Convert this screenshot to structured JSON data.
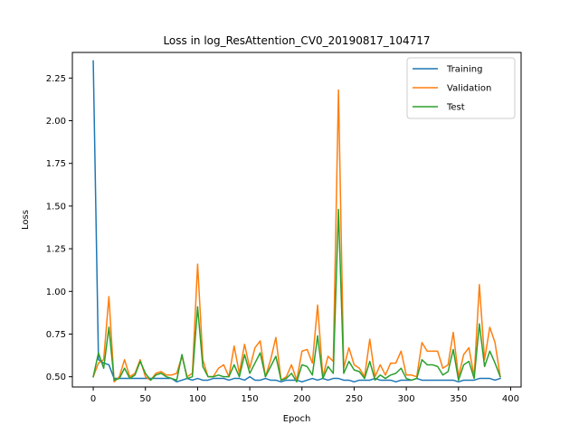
{
  "chart_data": {
    "type": "line",
    "title": "Loss in log_ResAttention_CV0_20190817_104717",
    "xlabel": "Epoch",
    "ylabel": "Loss",
    "xlim": [
      -20,
      410
    ],
    "ylim": [
      0.44,
      2.4
    ],
    "xticks": [
      0,
      50,
      100,
      150,
      200,
      250,
      300,
      350,
      400
    ],
    "yticks": [
      0.5,
      0.75,
      1.0,
      1.25,
      1.5,
      1.75,
      2.0,
      2.25
    ],
    "ytick_format": 2,
    "grid": false,
    "legend_position": "top-right",
    "x": [
      0,
      5,
      10,
      15,
      20,
      25,
      30,
      35,
      40,
      45,
      50,
      55,
      60,
      65,
      70,
      75,
      80,
      85,
      90,
      95,
      100,
      105,
      110,
      115,
      120,
      125,
      130,
      135,
      140,
      145,
      150,
      155,
      160,
      165,
      170,
      175,
      180,
      185,
      190,
      195,
      200,
      205,
      210,
      215,
      220,
      225,
      230,
      235,
      240,
      245,
      250,
      255,
      260,
      265,
      270,
      275,
      280,
      285,
      290,
      295,
      300,
      305,
      310,
      315,
      320,
      325,
      330,
      335,
      340,
      345,
      350,
      355,
      360,
      365,
      370,
      375,
      380,
      385,
      390
    ],
    "series": [
      {
        "name": "Training",
        "color": "#1f77b4",
        "values": [
          2.35,
          0.6,
          0.58,
          0.57,
          0.49,
          0.49,
          0.49,
          0.49,
          0.49,
          0.49,
          0.49,
          0.49,
          0.49,
          0.49,
          0.49,
          0.49,
          0.47,
          0.48,
          0.49,
          0.48,
          0.49,
          0.48,
          0.48,
          0.49,
          0.49,
          0.49,
          0.48,
          0.49,
          0.49,
          0.48,
          0.5,
          0.48,
          0.48,
          0.49,
          0.48,
          0.48,
          0.47,
          0.48,
          0.48,
          0.48,
          0.47,
          0.48,
          0.49,
          0.48,
          0.49,
          0.48,
          0.49,
          0.49,
          0.48,
          0.48,
          0.47,
          0.48,
          0.48,
          0.48,
          0.49,
          0.48,
          0.48,
          0.48,
          0.47,
          0.48,
          0.48,
          0.48,
          0.49,
          0.48,
          0.48,
          0.48,
          0.48,
          0.48,
          0.48,
          0.48,
          0.47,
          0.48,
          0.48,
          0.48,
          0.49,
          0.49,
          0.49,
          0.48,
          0.49
        ]
      },
      {
        "name": "Validation",
        "color": "#ff7f0e",
        "values": [
          0.5,
          0.58,
          0.6,
          0.97,
          0.47,
          0.5,
          0.6,
          0.5,
          0.52,
          0.6,
          0.5,
          0.48,
          0.52,
          0.53,
          0.51,
          0.51,
          0.52,
          0.62,
          0.5,
          0.52,
          1.16,
          0.6,
          0.5,
          0.5,
          0.55,
          0.57,
          0.5,
          0.68,
          0.52,
          0.69,
          0.55,
          0.67,
          0.71,
          0.5,
          0.6,
          0.73,
          0.48,
          0.5,
          0.57,
          0.48,
          0.65,
          0.66,
          0.58,
          0.92,
          0.5,
          0.62,
          0.59,
          2.18,
          0.55,
          0.67,
          0.57,
          0.55,
          0.5,
          0.72,
          0.5,
          0.57,
          0.51,
          0.58,
          0.58,
          0.65,
          0.51,
          0.51,
          0.5,
          0.7,
          0.65,
          0.65,
          0.65,
          0.55,
          0.57,
          0.76,
          0.5,
          0.63,
          0.67,
          0.5,
          1.04,
          0.6,
          0.79,
          0.7,
          0.5
        ]
      },
      {
        "name": "Test",
        "color": "#2ca02c",
        "values": [
          0.5,
          0.64,
          0.55,
          0.79,
          0.48,
          0.49,
          0.55,
          0.49,
          0.51,
          0.59,
          0.52,
          0.48,
          0.51,
          0.52,
          0.5,
          0.49,
          0.48,
          0.63,
          0.49,
          0.5,
          0.91,
          0.56,
          0.5,
          0.5,
          0.51,
          0.5,
          0.5,
          0.57,
          0.5,
          0.63,
          0.52,
          0.58,
          0.64,
          0.5,
          0.56,
          0.62,
          0.48,
          0.49,
          0.52,
          0.47,
          0.57,
          0.56,
          0.51,
          0.74,
          0.49,
          0.56,
          0.52,
          1.48,
          0.52,
          0.59,
          0.54,
          0.53,
          0.49,
          0.59,
          0.48,
          0.51,
          0.49,
          0.51,
          0.52,
          0.55,
          0.49,
          0.48,
          0.49,
          0.6,
          0.57,
          0.57,
          0.56,
          0.51,
          0.53,
          0.66,
          0.48,
          0.57,
          0.59,
          0.49,
          0.81,
          0.56,
          0.65,
          0.58,
          0.5
        ]
      }
    ]
  }
}
